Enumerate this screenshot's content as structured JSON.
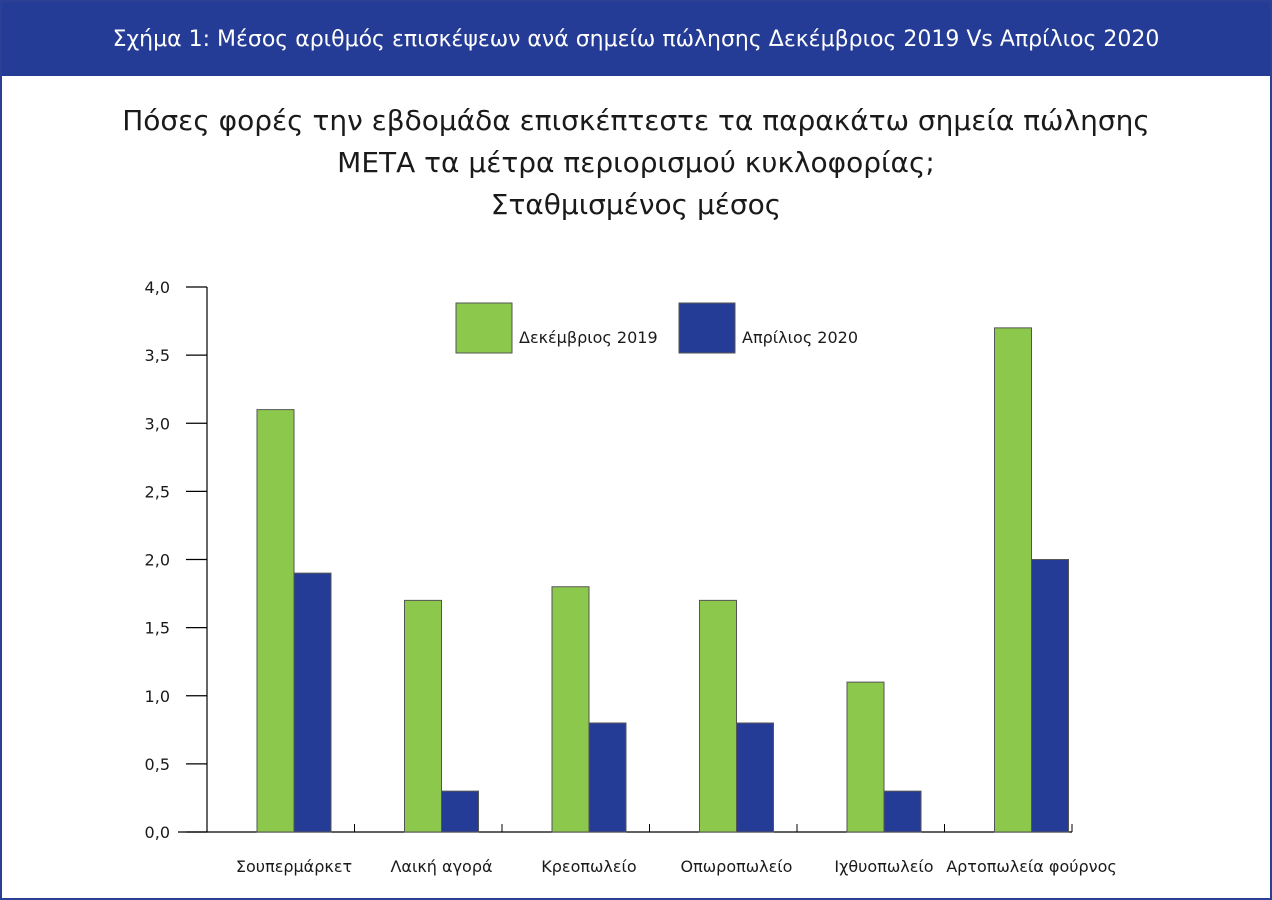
{
  "banner": {
    "title": "Σχήμα 1: Μέσος αριθμός επισκέψεων ανά σημείω πώλησης Δεκέμβριος 2019  Vs Απρίλιος 2020"
  },
  "colors": {
    "banner": "#253c96",
    "series_dec_2019": "#8cc84b",
    "series_apr_2020": "#253c96"
  },
  "chart_data": {
    "type": "bar",
    "title_lines": [
      "Πόσες φορές την εβδομάδα επισκέπτεστε τα παρακάτω σημεία  πώλησης",
      "ΜΕΤΑ τα μέτρα περιορισμού κυκλοφορίας;",
      "Σταθμισμένος μέσος"
    ],
    "categories": [
      "Σουπερμάρκετ",
      "Λαική αγορά",
      "Κρεοπωλείο",
      "Οπωροπωλείο",
      "Ιχθυοπωλείο",
      "Αρτοπωλεία φούρνος"
    ],
    "series": [
      {
        "name": "Δεκέμβριος 2019",
        "color": "#8cc84b",
        "values": [
          3.1,
          1.7,
          1.8,
          1.7,
          1.1,
          3.7
        ]
      },
      {
        "name": "Απρίλιος 2020",
        "color": "#253c96",
        "values": [
          1.9,
          0.3,
          0.8,
          0.8,
          0.3,
          2.0
        ]
      }
    ],
    "ylim": [
      0,
      4
    ],
    "yticks": [
      "0,0",
      "0,5",
      "1,0",
      "1,5",
      "2,0",
      "2,5",
      "3,0",
      "3,5",
      "4,0"
    ],
    "ytick_values": [
      0,
      0.5,
      1,
      1.5,
      2,
      2.5,
      3,
      3.5,
      4
    ],
    "xlabel": "",
    "ylabel": "",
    "legend_position": "top-center",
    "grid": false
  }
}
